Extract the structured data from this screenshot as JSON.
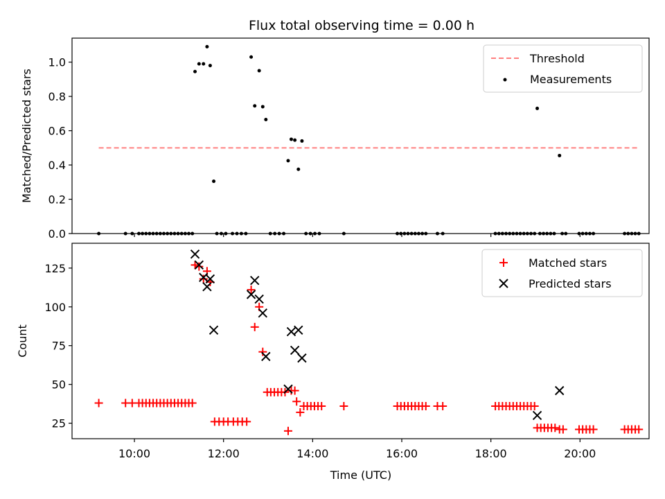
{
  "chart_data": [
    {
      "type": "scatter",
      "title": "Flux total observing time = 0.00 h",
      "xlabel": "",
      "ylabel": "Matched/Predicted stars",
      "ylim": [
        0.0,
        1.14
      ],
      "yticks": [
        0.0,
        0.2,
        0.4,
        0.6,
        0.8,
        1.0
      ],
      "xlim": [
        8.6,
        21.55
      ],
      "legend_position": "top-right",
      "threshold": {
        "name": "Threshold",
        "y": 0.5,
        "x_range": [
          9.2,
          21.33
        ],
        "color": "#ff7f7f"
      },
      "series": [
        {
          "name": "Measurements",
          "color": "#000000",
          "marker": "dot",
          "points": [
            [
              9.2,
              0
            ],
            [
              9.8,
              0
            ],
            [
              9.95,
              0
            ],
            [
              10.1,
              0
            ],
            [
              10.18,
              0
            ],
            [
              10.26,
              0
            ],
            [
              10.34,
              0
            ],
            [
              10.42,
              0
            ],
            [
              10.5,
              0
            ],
            [
              10.58,
              0
            ],
            [
              10.66,
              0
            ],
            [
              10.74,
              0
            ],
            [
              10.82,
              0
            ],
            [
              10.9,
              0
            ],
            [
              10.98,
              0
            ],
            [
              11.06,
              0
            ],
            [
              11.14,
              0
            ],
            [
              11.22,
              0
            ],
            [
              11.3,
              0
            ],
            [
              11.36,
              0.945
            ],
            [
              11.45,
              0.99
            ],
            [
              11.55,
              0.99
            ],
            [
              11.63,
              1.09
            ],
            [
              11.7,
              0.98
            ],
            [
              11.78,
              0.305
            ],
            [
              11.85,
              0
            ],
            [
              11.95,
              0
            ],
            [
              12.05,
              0
            ],
            [
              12.2,
              0
            ],
            [
              12.3,
              0
            ],
            [
              12.4,
              0
            ],
            [
              12.5,
              0
            ],
            [
              12.62,
              1.03
            ],
            [
              12.7,
              0.745
            ],
            [
              12.8,
              0.95
            ],
            [
              12.88,
              0.74
            ],
            [
              12.95,
              0.665
            ],
            [
              13.05,
              0
            ],
            [
              13.15,
              0
            ],
            [
              13.25,
              0
            ],
            [
              13.35,
              0
            ],
            [
              13.45,
              0.425
            ],
            [
              13.52,
              0.55
            ],
            [
              13.6,
              0.545
            ],
            [
              13.68,
              0.375
            ],
            [
              13.76,
              0.54
            ],
            [
              13.85,
              0
            ],
            [
              13.95,
              0
            ],
            [
              14.05,
              0
            ],
            [
              14.15,
              0
            ],
            [
              14.7,
              0
            ],
            [
              15.9,
              0
            ],
            [
              15.98,
              0
            ],
            [
              16.06,
              0
            ],
            [
              16.14,
              0
            ],
            [
              16.22,
              0
            ],
            [
              16.3,
              0
            ],
            [
              16.38,
              0
            ],
            [
              16.46,
              0
            ],
            [
              16.54,
              0
            ],
            [
              16.8,
              0
            ],
            [
              16.92,
              0
            ],
            [
              18.1,
              0
            ],
            [
              18.18,
              0
            ],
            [
              18.26,
              0
            ],
            [
              18.34,
              0
            ],
            [
              18.42,
              0
            ],
            [
              18.5,
              0
            ],
            [
              18.58,
              0
            ],
            [
              18.66,
              0
            ],
            [
              18.74,
              0
            ],
            [
              18.82,
              0
            ],
            [
              18.9,
              0
            ],
            [
              18.98,
              0
            ],
            [
              19.04,
              0.73
            ],
            [
              19.1,
              0
            ],
            [
              19.18,
              0
            ],
            [
              19.26,
              0
            ],
            [
              19.34,
              0
            ],
            [
              19.42,
              0
            ],
            [
              19.54,
              0.455
            ],
            [
              19.6,
              0
            ],
            [
              19.68,
              0
            ],
            [
              19.98,
              0
            ],
            [
              20.06,
              0
            ],
            [
              20.14,
              0
            ],
            [
              20.22,
              0
            ],
            [
              20.3,
              0
            ],
            [
              21.0,
              0
            ],
            [
              21.08,
              0
            ],
            [
              21.16,
              0
            ],
            [
              21.24,
              0
            ],
            [
              21.32,
              0
            ]
          ]
        }
      ]
    },
    {
      "type": "scatter",
      "title": "",
      "xlabel": "Time (UTC)",
      "ylabel": "Count",
      "ylim": [
        15,
        141
      ],
      "yticks": [
        25,
        50,
        75,
        100,
        125
      ],
      "xlim": [
        8.6,
        21.55
      ],
      "xticks": [
        10,
        12,
        14,
        16,
        18,
        20
      ],
      "xticklabels": [
        "10:00",
        "12:00",
        "14:00",
        "16:00",
        "18:00",
        "20:00"
      ],
      "legend_position": "top-right",
      "series": [
        {
          "name": "Matched stars",
          "color": "#ff0000",
          "marker": "plus",
          "points": [
            [
              9.2,
              38
            ],
            [
              9.8,
              38
            ],
            [
              9.95,
              38
            ],
            [
              10.1,
              38
            ],
            [
              10.18,
              38
            ],
            [
              10.26,
              38
            ],
            [
              10.34,
              38
            ],
            [
              10.42,
              38
            ],
            [
              10.5,
              38
            ],
            [
              10.58,
              38
            ],
            [
              10.66,
              38
            ],
            [
              10.74,
              38
            ],
            [
              10.82,
              38
            ],
            [
              10.9,
              38
            ],
            [
              10.98,
              38
            ],
            [
              11.06,
              38
            ],
            [
              11.14,
              38
            ],
            [
              11.22,
              38
            ],
            [
              11.3,
              38
            ],
            [
              11.36,
              127
            ],
            [
              11.45,
              126
            ],
            [
              11.55,
              118
            ],
            [
              11.63,
              123
            ],
            [
              11.7,
              116
            ],
            [
              11.8,
              26
            ],
            [
              11.9,
              26
            ],
            [
              12.0,
              26
            ],
            [
              12.1,
              26
            ],
            [
              12.22,
              26
            ],
            [
              12.32,
              26
            ],
            [
              12.42,
              26
            ],
            [
              12.52,
              26
            ],
            [
              12.62,
              111
            ],
            [
              12.7,
              87
            ],
            [
              12.8,
              100
            ],
            [
              12.88,
              71
            ],
            [
              12.98,
              45
            ],
            [
              13.06,
              45
            ],
            [
              13.14,
              45
            ],
            [
              13.22,
              45
            ],
            [
              13.3,
              45
            ],
            [
              13.38,
              45
            ],
            [
              13.45,
              20
            ],
            [
              13.52,
              46
            ],
            [
              13.6,
              46
            ],
            [
              13.64,
              39
            ],
            [
              13.72,
              32
            ],
            [
              13.8,
              36
            ],
            [
              13.88,
              36
            ],
            [
              13.96,
              36
            ],
            [
              14.04,
              36
            ],
            [
              14.12,
              36
            ],
            [
              14.2,
              36
            ],
            [
              14.7,
              36
            ],
            [
              15.9,
              36
            ],
            [
              15.98,
              36
            ],
            [
              16.06,
              36
            ],
            [
              16.14,
              36
            ],
            [
              16.22,
              36
            ],
            [
              16.3,
              36
            ],
            [
              16.38,
              36
            ],
            [
              16.46,
              36
            ],
            [
              16.54,
              36
            ],
            [
              16.8,
              36
            ],
            [
              16.92,
              36
            ],
            [
              18.1,
              36
            ],
            [
              18.18,
              36
            ],
            [
              18.26,
              36
            ],
            [
              18.34,
              36
            ],
            [
              18.42,
              36
            ],
            [
              18.5,
              36
            ],
            [
              18.58,
              36
            ],
            [
              18.66,
              36
            ],
            [
              18.74,
              36
            ],
            [
              18.82,
              36
            ],
            [
              18.9,
              36
            ],
            [
              18.98,
              36
            ],
            [
              19.04,
              22
            ],
            [
              19.12,
              22
            ],
            [
              19.2,
              22
            ],
            [
              19.28,
              22
            ],
            [
              19.36,
              22
            ],
            [
              19.44,
              22
            ],
            [
              19.54,
              21
            ],
            [
              19.62,
              21
            ],
            [
              19.98,
              21
            ],
            [
              20.06,
              21
            ],
            [
              20.14,
              21
            ],
            [
              20.22,
              21
            ],
            [
              20.3,
              21
            ],
            [
              21.0,
              21
            ],
            [
              21.08,
              21
            ],
            [
              21.16,
              21
            ],
            [
              21.24,
              21
            ],
            [
              21.32,
              21
            ]
          ]
        },
        {
          "name": "Predicted stars",
          "color": "#000000",
          "marker": "x",
          "points": [
            [
              11.36,
              134
            ],
            [
              11.45,
              127
            ],
            [
              11.55,
              119
            ],
            [
              11.63,
              113
            ],
            [
              11.7,
              118
            ],
            [
              11.78,
              85
            ],
            [
              12.62,
              108
            ],
            [
              12.7,
              117
            ],
            [
              12.8,
              105
            ],
            [
              12.88,
              96
            ],
            [
              12.95,
              68
            ],
            [
              13.45,
              47
            ],
            [
              13.52,
              84
            ],
            [
              13.6,
              72
            ],
            [
              13.68,
              85
            ],
            [
              13.76,
              67
            ],
            [
              19.04,
              30
            ],
            [
              19.54,
              46
            ]
          ]
        }
      ]
    }
  ]
}
